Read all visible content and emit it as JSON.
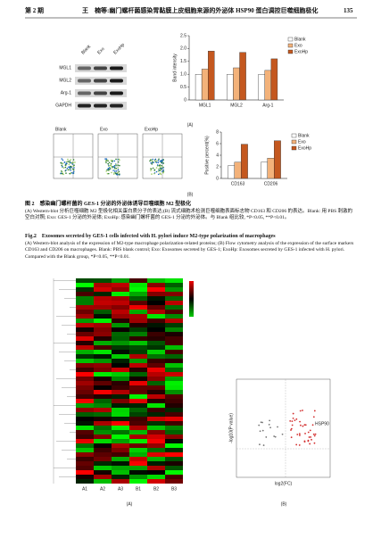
{
  "header": {
    "issue": "第 2 期",
    "title": "王　楠等:幽门螺杆菌感染胃黏膜上皮细胞来源的外泌体 HSP90 蛋白调控巨噬细胞极化",
    "page": "135"
  },
  "figure2": {
    "blot": {
      "lanes": [
        "Blank",
        "Exo",
        "ExoHp"
      ],
      "rows": [
        "MGL1",
        "MGL2",
        "Arg-1",
        "GAPDH"
      ]
    },
    "flow": {
      "titles": [
        "Blank",
        "Exo",
        "ExoHp"
      ]
    },
    "label_a": "(A)",
    "label_b": "(B)",
    "caption_zh_title": "图 2　感染幽门螺杆菌的 GES-1 分泌的外泌体诱导巨噬细胞 M2 型极化",
    "caption_zh": "(A) Western-blot 分析巨噬细胞 M2 型极化相关蛋白质分子的表达;(B) 流式细胞术检测巨噬细胞表面标志物 CD163 和 CD206 的表达。Blank: 用 PBS 刺激的空白对照; Exo: GES-1 分泌的外泌体; ExoHp: 感染幽门螺杆菌的 GES-1 分泌的外泌体。与 Blank 组比较, *P<0.05, **P<0.01。",
    "caption_en_title": "Fig.2　Exosomes secreted by GES-1 cells infected with H. pylori induce M2-type polarization of macrophages",
    "caption_en": "(A) Western-blot analysis of the expression of M2-type macrophage polarization-related proteins; (B) Flow cytometry analysis of the expression of the surface markers CD163 and CD206 on macrophages. Blank: PBS blank control; Exo: Exosomes secreted by GES-1; ExoHp: Exosomes secreted by GES-1 infected with H. pylori. Compared with the Blank group, *P<0.05, **P<0.01."
  },
  "figure3": {
    "columns": [
      "A1",
      "A2",
      "A3",
      "B1",
      "B2",
      "B3"
    ],
    "label_a": "(A)",
    "label_b": "(B)",
    "volcano": {
      "highlight": "HSP90",
      "x_label": "log2(FC)",
      "y_label": "-log10(P value)"
    }
  },
  "chart_data": [
    {
      "type": "bar",
      "y_label": "Band intensity",
      "categories": [
        "MGL1",
        "MGL2",
        "Arg-1"
      ],
      "series": [
        {
          "name": "Blank",
          "color": "#ffffff",
          "values": [
            1.0,
            1.0,
            1.0
          ]
        },
        {
          "name": "Exo",
          "color": "#f3b27a",
          "values": [
            1.2,
            1.25,
            1.15
          ]
        },
        {
          "name": "ExoHp",
          "color": "#c4581f",
          "values": [
            1.9,
            1.85,
            1.6
          ]
        }
      ],
      "ylim": [
        0,
        2.5
      ],
      "yticks": [
        0,
        {
          "value": 0.5,
          "label": "0.5"
        },
        {
          "value": 1,
          "label": "1.0"
        },
        {
          "value": 1.5,
          "label": "1.5"
        },
        {
          "value": 2,
          "label": "2.0"
        },
        {
          "value": 2.5,
          "label": "2.5"
        }
      ]
    },
    {
      "type": "bar",
      "y_label": "Positive percent(%)",
      "categories": [
        "CD163",
        "CD206"
      ],
      "series": [
        {
          "name": "Blank",
          "color": "#ffffff",
          "values": [
            2.2,
            2.8
          ]
        },
        {
          "name": "Exo",
          "color": "#f3b27a",
          "values": [
            2.8,
            3.5
          ]
        },
        {
          "name": "ExoHp",
          "color": "#c4581f",
          "values": [
            5.9,
            6.5
          ]
        }
      ],
      "ylim": [
        0,
        8
      ],
      "yticks": [
        0,
        2,
        4,
        6,
        8
      ]
    }
  ]
}
